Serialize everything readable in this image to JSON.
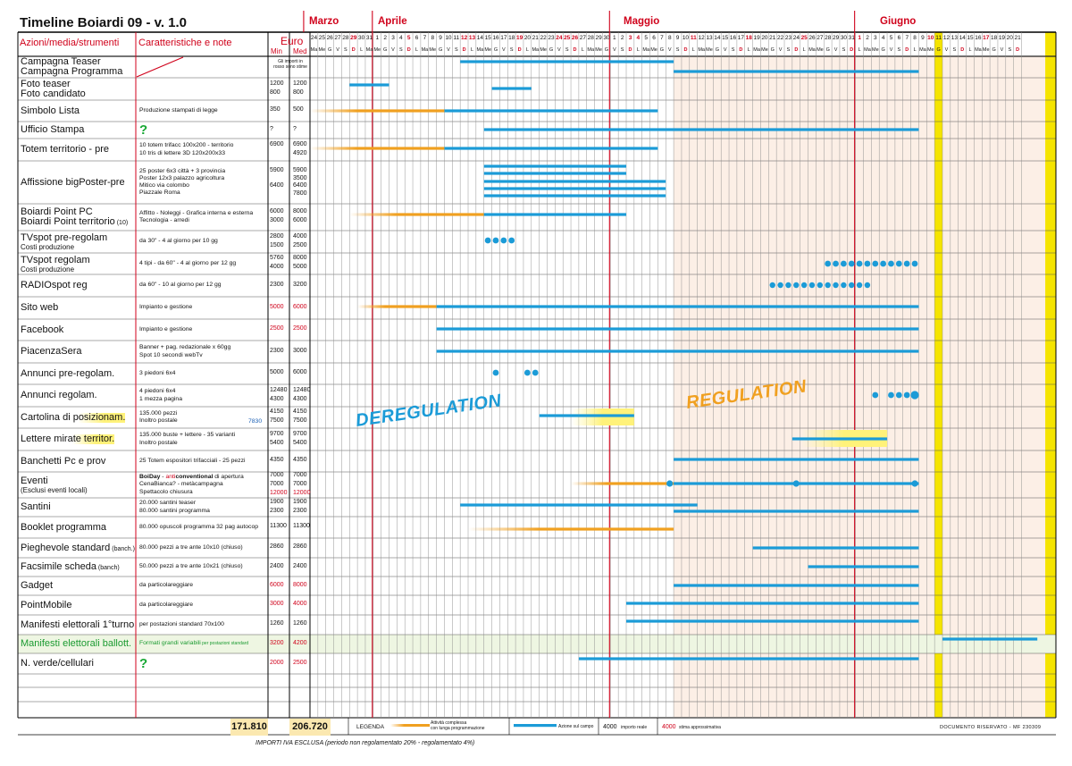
{
  "title": "Timeline Boiardi 09 - v. 1.0",
  "header": {
    "col_actions": "Azioni/media/strumenti",
    "col_features": "Caratteristiche e note",
    "col_euro": "Euro",
    "col_min": "Min",
    "col_med": "Med"
  },
  "months": [
    "Marzo",
    "Aprile",
    "Maggio",
    "Giugno"
  ],
  "day_numbers": [
    "24",
    "25",
    "26",
    "27",
    "28",
    "29",
    "30",
    "31",
    "1",
    "2",
    "3",
    "4",
    "5",
    "6",
    "7",
    "8",
    "9",
    "10",
    "11",
    "12",
    "13",
    "14",
    "15",
    "16",
    "17",
    "18",
    "19",
    "20",
    "21",
    "22",
    "23",
    "24",
    "25",
    "26",
    "27",
    "28",
    "29",
    "30",
    "1",
    "2",
    "3",
    "4",
    "5",
    "6",
    "7",
    "8",
    "9",
    "10",
    "11",
    "12",
    "13",
    "14",
    "15",
    "16",
    "17",
    "18",
    "19",
    "20",
    "21",
    "22",
    "23",
    "24",
    "25",
    "26",
    "27",
    "28",
    "29",
    "30",
    "31",
    "1",
    "2",
    "3",
    "4",
    "5",
    "6",
    "7",
    "8",
    "9",
    "10",
    "11",
    "12",
    "13",
    "14",
    "15",
    "16",
    "17",
    "18",
    "19",
    "20",
    "21"
  ],
  "weekdays": [
    "Ma",
    "Me",
    "G",
    "V",
    "S",
    "D",
    "L",
    "Ma",
    "Me",
    "G",
    "V",
    "S",
    "D",
    "L",
    "Ma",
    "Me",
    "G",
    "V",
    "S",
    "D",
    "L",
    "Ma",
    "Me",
    "G",
    "V",
    "S",
    "D",
    "L",
    "Ma",
    "Me",
    "G",
    "V",
    "S",
    "D",
    "L",
    "Ma",
    "Me",
    "G",
    "V",
    "S",
    "D",
    "L",
    "Ma",
    "Me",
    "G",
    "V",
    "S",
    "D",
    "L",
    "Ma",
    "Me",
    "G",
    "V",
    "S",
    "D",
    "L",
    "Ma",
    "Me",
    "G",
    "V",
    "S",
    "D",
    "L",
    "Ma",
    "Me",
    "G",
    "V",
    "S",
    "D",
    "L",
    "Ma",
    "Me",
    "G",
    "V",
    "S",
    "D",
    "L",
    "Ma",
    "Me",
    "G",
    "V",
    "S",
    "D",
    "L",
    "Ma",
    "Me",
    "G",
    "V",
    "S",
    "D"
  ],
  "red_days": [
    "29",
    "5",
    "12",
    "13",
    "19",
    "24",
    "25",
    "26",
    "2",
    "3",
    "10",
    "17",
    "24",
    "31",
    "7",
    "14",
    "21"
  ],
  "rows": [
    {
      "label": "Campagna Teaser",
      "label2": "Campagna Programma",
      "desc": "",
      "min": "",
      "med": "",
      "euro_note": "Gli importi in rosso sono stime"
    },
    {
      "label": "Foto teaser",
      "label2": "Foto candidato",
      "desc": "",
      "min": "1200",
      "min2": "800",
      "med": "1200",
      "med2": "800"
    },
    {
      "label": "Simbolo Lista",
      "desc": "Produzione stampati di legge",
      "min": "350",
      "med": "500"
    },
    {
      "label": "Ufficio Stampa",
      "desc": "?",
      "min": "?",
      "med": "?"
    },
    {
      "label": "Totem territorio - pre",
      "desc": "10 totem trifacc 100x200 - territorio",
      "desc2": "10 tris di lettere 3D 120x200x33",
      "min": "6900",
      "med": "6900",
      "med2": "4920"
    },
    {
      "label": "Affissione bigPoster-pre",
      "desc": "25 poster 6x3 città + 3 provincia",
      "desc2": "Poster 12x3 palazzo agricoltura",
      "desc3": "Mitico via colombo",
      "desc4": "Piazzale Roma",
      "min": "5900",
      "min3": "6400",
      "med": "5900",
      "med2": "3500",
      "med3": "6400",
      "med4": "7800"
    },
    {
      "label": "Boiardi Point PC",
      "label2": "Boiardi Point territorio",
      "label2_small": "(10)",
      "desc": "Affitto - Noleggi - Grafica interna e esterna",
      "desc2": "Tecnologia - arredi",
      "min": "6000",
      "min2": "3000",
      "med": "8000",
      "med2": "6000"
    },
    {
      "label": "TVspot pre-regolam",
      "sub": "Costi produzione",
      "desc": "da 30\" - 4 al giorno per 10 gg",
      "min": "2800",
      "min2": "1500",
      "med": "4000",
      "med2": "2500"
    },
    {
      "label": "TVspot regolam",
      "sub": "Costi produzione",
      "desc": "4 tipi - da 60\" - 4 al giorno per 12 gg",
      "min": "5760",
      "min2": "4000",
      "med": "8000",
      "med2": "5000"
    },
    {
      "label": "RADIOspot reg",
      "desc": "da 60\" - 10 al giorno per 12 gg",
      "min": "2300",
      "med": "3200"
    },
    {
      "label": "Sito web",
      "desc": "Impianto e gestione",
      "min": "5000",
      "med": "6000"
    },
    {
      "label": "Facebook",
      "desc": "Impianto e gestione",
      "min": "2500",
      "med": "2500"
    },
    {
      "label": "PiacenzaSera",
      "desc": "Banner + pag. redazionale x 60gg",
      "desc2": "Spot 10 secondi webTv",
      "min": "2300",
      "med": "3000"
    },
    {
      "label": "Annunci pre-regolam.",
      "desc": "3 piedoni 6x4",
      "min": "5000",
      "med": "6000"
    },
    {
      "label": "Annunci regolam.",
      "desc": "4 piedoni 6x4",
      "desc2": "1 mezza pagina",
      "min": "12480",
      "min2": "4300",
      "med": "12480",
      "med2": "4300"
    },
    {
      "label": "Cartolina di posizionam.",
      "desc": "135.000 pezzi",
      "desc2": "Inoltro postale",
      "extra": "7830",
      "min": "4150",
      "min2": "7500",
      "med": "4150",
      "med2": "7500"
    },
    {
      "label": "Lettere mirate territor.",
      "desc": "135.000 buste + lettere - 35 varianti",
      "desc2": "Inoltro postale",
      "min": "9700",
      "min2": "5400",
      "med": "9700",
      "med2": "5400"
    },
    {
      "label": "Banchetti Pc e prov",
      "desc": "25 Totem espositori trifacciali - 25 pezzi",
      "min": "4350",
      "med": "4350"
    },
    {
      "label": "Eventi",
      "sub": "(Esclusi eventi locali)",
      "desc_a": "BoiDay - ",
      "desc_b": "anticonventional",
      "desc_c": " di apertura",
      "desc2": "CenaBianca? - metàcampagna",
      "desc3": "Spettacolo chiusura",
      "min": "7000",
      "min2": "7000",
      "min3": "12000",
      "med": "7000",
      "med2": "7000",
      "med3": "12000"
    },
    {
      "label": "Santini",
      "desc": "20.000 santini teaser",
      "desc2": "80.000 santini programma",
      "min": "1900",
      "min2": "2300",
      "med": "1900",
      "med2": "2300"
    },
    {
      "label": "Booklet programma",
      "desc": "80.000 opuscoli programma 32 pag autocop",
      "min": "11300",
      "med": "11300"
    },
    {
      "label": "Pieghevole standard",
      "label_small": "(banch.)",
      "desc": "80.000 pezzi a tre ante 10x10 (chiuso)",
      "min": "2860",
      "med": "2860"
    },
    {
      "label": "Facsimile scheda",
      "label_small": "(banch)",
      "desc": "50.000 pezzi a tre ante 10x21 (chiuso)",
      "min": "2400",
      "med": "2400"
    },
    {
      "label": "Gadget",
      "desc": "da particolareggiare",
      "min": "6000",
      "med": "8000"
    },
    {
      "label": "PointMobile",
      "desc": "da particolareggiare",
      "min": "3000",
      "med": "4000"
    },
    {
      "label": "Manifesti elettorali 1°turno",
      "desc": "per postazioni standard 70x100",
      "min": "1260",
      "med": "1260"
    },
    {
      "label": "Manifesti elettorali ballott.",
      "desc": "Formati grandi variabili",
      "desc_small": "per postazioni standard",
      "min": "3200",
      "med": "4200"
    },
    {
      "label": "N. verde/cellulari",
      "desc": "?",
      "min": "2000",
      "med": "2500"
    }
  ],
  "stamps": {
    "deregulation": "DEREGULATION",
    "regulation": "REGULATION"
  },
  "footer": {
    "total_min": "171.810",
    "total_med": "206.720",
    "legenda": "LEGENDA",
    "legend_orange": "Attività complessa con lunga programmazione",
    "legend_orange_1": "Attività complessa",
    "legend_orange_2": "con lunga programmazione",
    "legend_blue": "Azione sul campo",
    "legend_real_value": "4000",
    "legend_real": "importo reale",
    "legend_est_value": "4000",
    "legend_est": "stima approssimativa",
    "confidential": "DOCUMENTO RISERVATO - MF 230309",
    "vat_note": "IMPORTI IVA ESCLUSA (periodo non regolamentato 20% - regolamentato 4%)"
  },
  "colors": {
    "red": "#d0021b",
    "blue": "#1b9bd7",
    "orange": "#f0a020",
    "green": "#1a9a30",
    "yellow": "#f5e400",
    "pink": "#fcefe6",
    "green_bg": "#eef6e2"
  }
}
